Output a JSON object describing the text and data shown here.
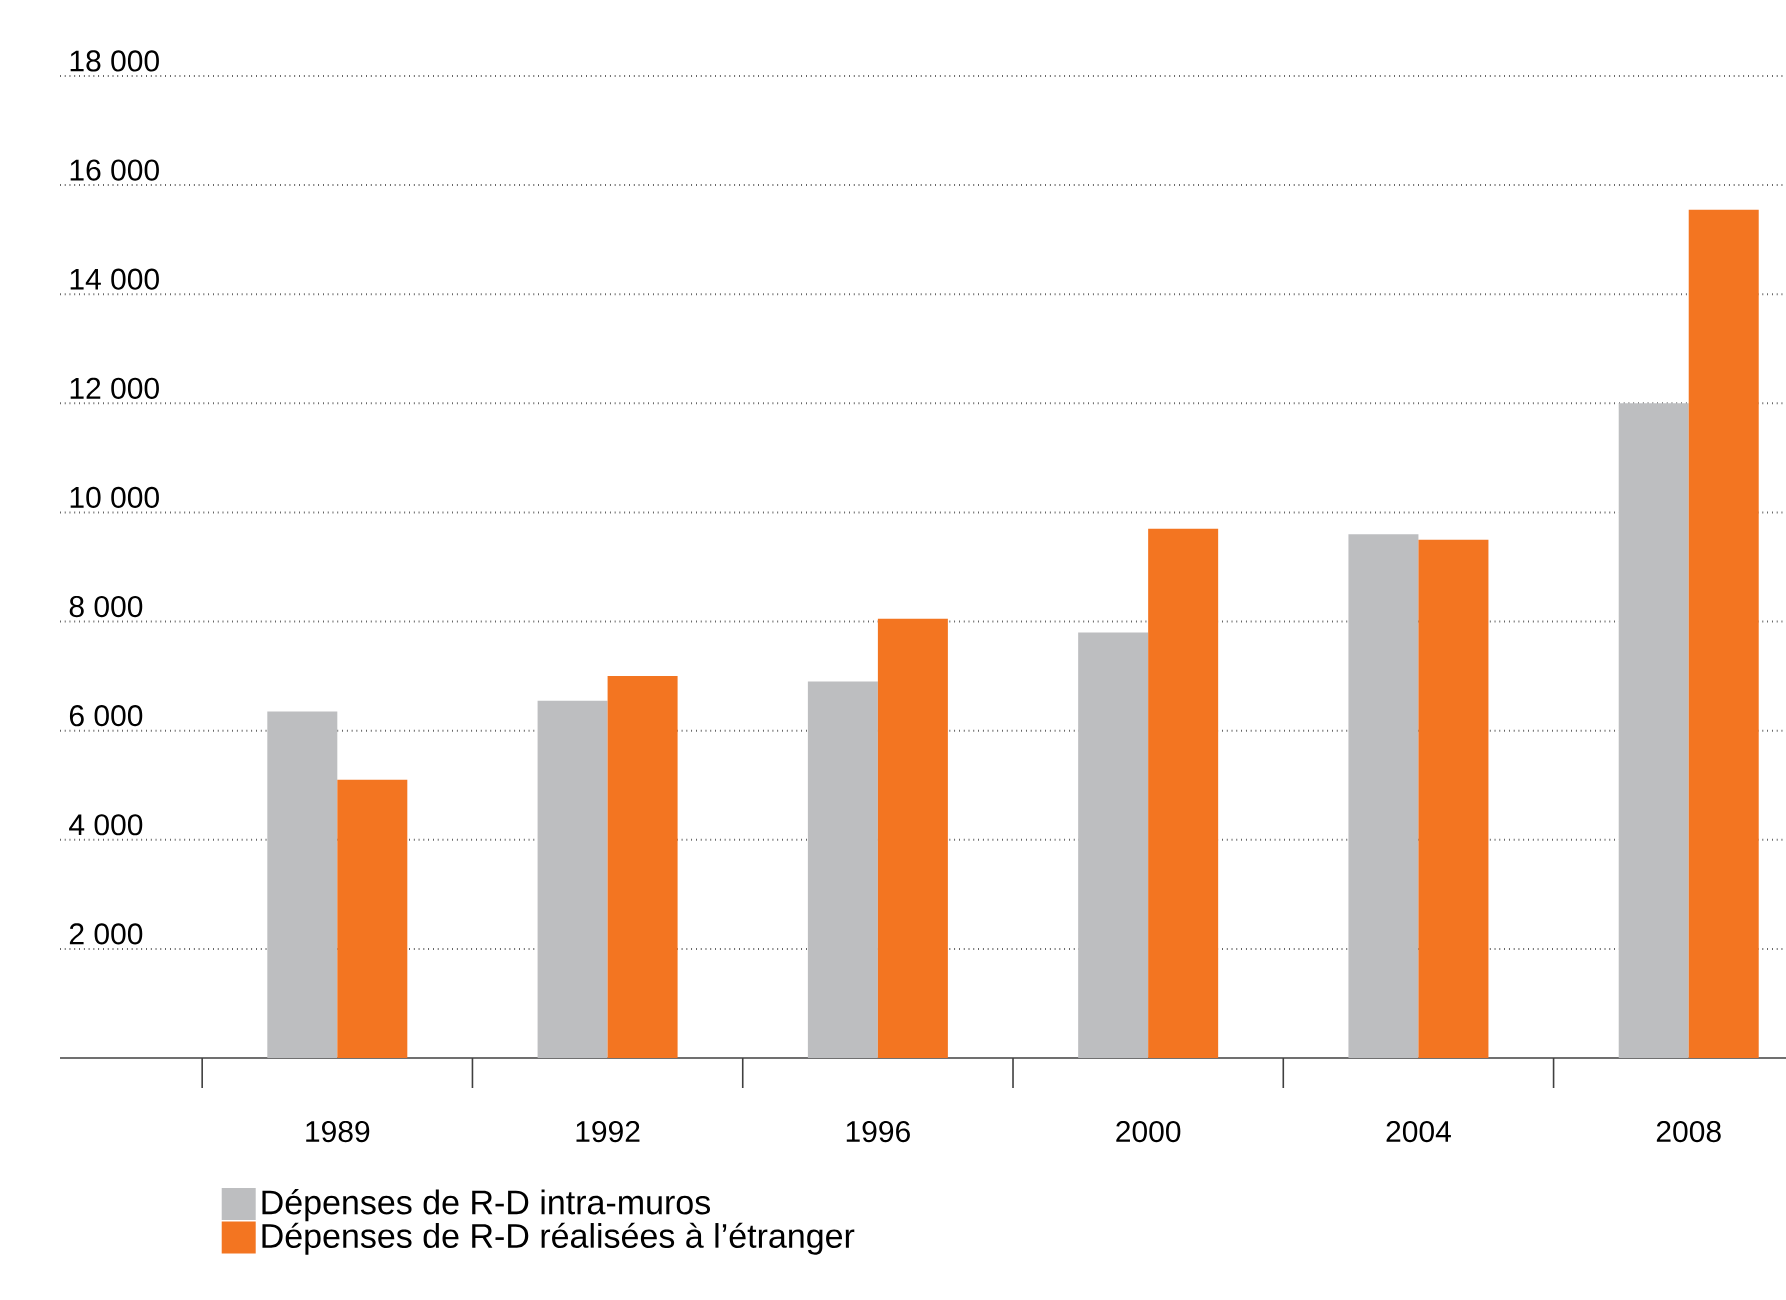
{
  "chart_data": {
    "type": "bar",
    "categories": [
      "1989",
      "1992",
      "1996",
      "2000",
      "2004",
      "2008"
    ],
    "series": [
      {
        "name": "Dépenses de R-D intra-muros",
        "color": "#bdbec0",
        "values": [
          6350,
          6550,
          6900,
          7800,
          9600,
          12000
        ]
      },
      {
        "name": "Dépenses de R-D réalisées à l’étranger",
        "color": "#f37521",
        "values": [
          5100,
          7000,
          8050,
          9700,
          9500,
          15550
        ]
      }
    ],
    "ylim": [
      0,
      18000
    ],
    "yticks": [
      {
        "value": 2000,
        "label": "2 000"
      },
      {
        "value": 4000,
        "label": "4 000"
      },
      {
        "value": 6000,
        "label": "6 000"
      },
      {
        "value": 8000,
        "label": "8 000"
      },
      {
        "value": 10000,
        "label": "10 000"
      },
      {
        "value": 12000,
        "label": "12 000"
      },
      {
        "value": 14000,
        "label": "14 000"
      },
      {
        "value": 16000,
        "label": "16 000"
      },
      {
        "value": 18000,
        "label": "18 000"
      }
    ],
    "grid": "y",
    "legend": "bottom left"
  }
}
